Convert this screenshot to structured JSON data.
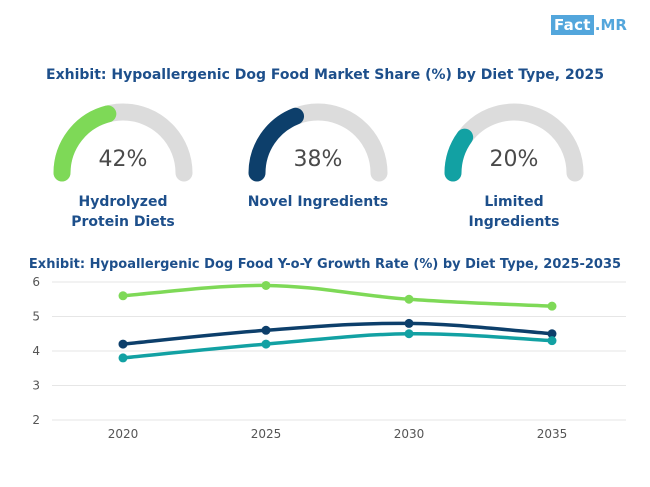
{
  "brand": {
    "part1": "Fact",
    "part2": "MR"
  },
  "chart_data": [
    {
      "type": "gauge",
      "title": "Exhibit: Hypoallergenic Dog Food Market Share (%) by Diet Type, 2025",
      "segments": [
        {
          "label_line1": "Hydrolyzed",
          "label_line2": "Protein Diets",
          "value": 42,
          "display": "42%",
          "color": "#7ed957"
        },
        {
          "label_line1": "Novel Ingredients",
          "label_line2": "",
          "value": 38,
          "display": "38%",
          "color": "#0d3f6b"
        },
        {
          "label_line1": "Limited",
          "label_line2": "Ingredients",
          "value": 20,
          "display": "20%",
          "color": "#12a1a3"
        }
      ],
      "track_color": "#dcdcdc"
    },
    {
      "type": "line",
      "title": "Exhibit: Hypoallergenic Dog Food Y-o-Y Growth Rate (%) by Diet Type, 2025-2035",
      "x": [
        2020,
        2025,
        2030,
        2035
      ],
      "x_tick_labels": [
        "2020",
        "2025",
        "2030",
        "2035"
      ],
      "y_tick_labels": [
        "2",
        "3",
        "4",
        "5",
        "6"
      ],
      "ylim": [
        2,
        6
      ],
      "grid": true,
      "series": [
        {
          "name": "Hydrolyzed Protein Diets",
          "values": [
            5.6,
            5.9,
            5.5,
            5.3
          ],
          "color": "#7ed957"
        },
        {
          "name": "Novel Ingredients",
          "values": [
            4.2,
            4.6,
            4.8,
            4.5
          ],
          "color": "#0d3f6b"
        },
        {
          "name": "Limited Ingredients",
          "values": [
            3.8,
            4.2,
            4.5,
            4.3
          ],
          "color": "#12a1a3"
        }
      ]
    }
  ]
}
